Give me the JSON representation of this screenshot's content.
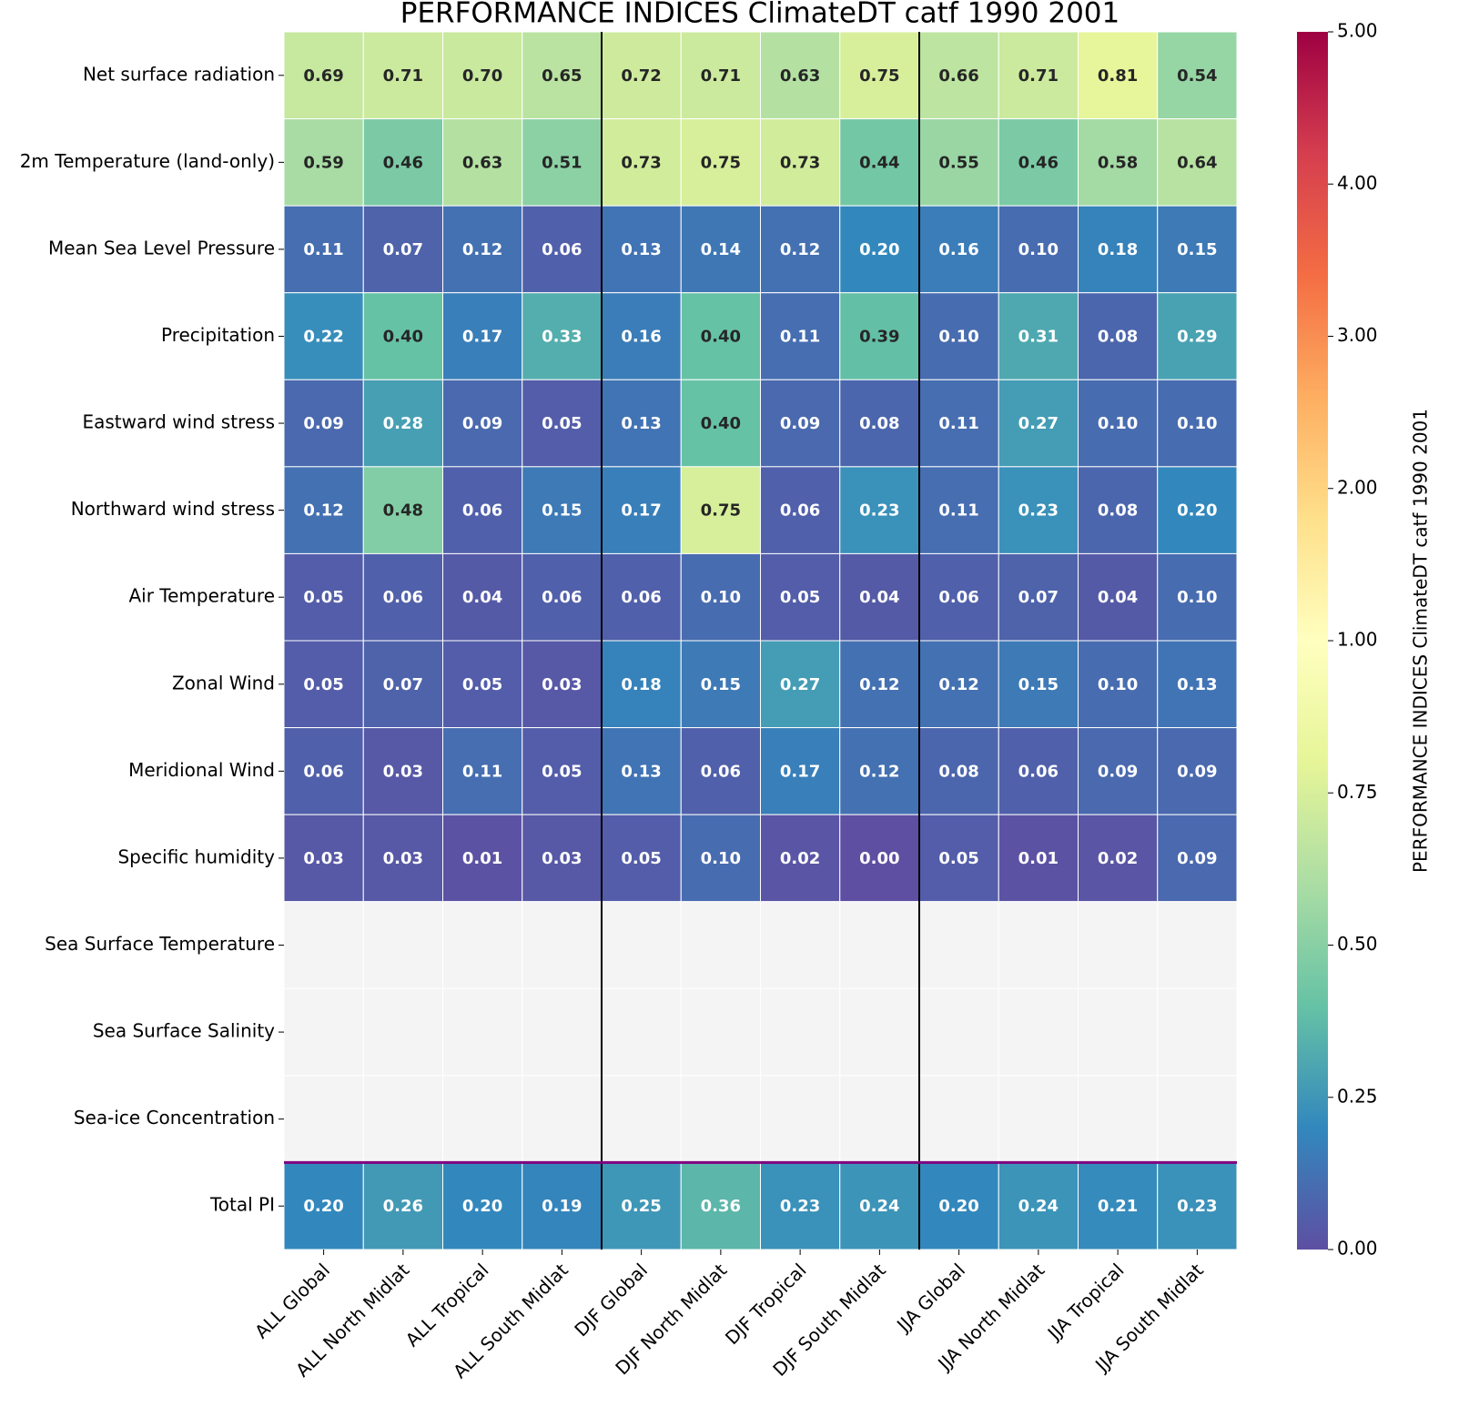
{
  "chart_data": {
    "type": "heatmap",
    "title": "PERFORMANCE INDICES ClimateDT catf 1990 2001",
    "rows": [
      "Net surface radiation",
      "2m Temperature (land-only)",
      "Mean Sea Level Pressure",
      "Precipitation",
      "Eastward wind stress",
      "Northward wind stress",
      "Air Temperature",
      "Zonal Wind",
      "Meridional Wind",
      "Specific humidity",
      "Sea Surface Temperature",
      "Sea Surface Salinity",
      "Sea-ice Concentration",
      "Total PI"
    ],
    "columns": [
      "ALL Global",
      "ALL North Midlat",
      "ALL Tropical",
      "ALL South Midlat",
      "DJF Global",
      "DJF North Midlat",
      "DJF Tropical",
      "DJF South Midlat",
      "JJA Global",
      "JJA North Midlat",
      "JJA Tropical",
      "JJA South Midlat"
    ],
    "values": [
      [
        0.69,
        0.71,
        0.7,
        0.65,
        0.72,
        0.71,
        0.63,
        0.75,
        0.66,
        0.71,
        0.81,
        0.54
      ],
      [
        0.59,
        0.46,
        0.63,
        0.51,
        0.73,
        0.75,
        0.73,
        0.44,
        0.55,
        0.46,
        0.58,
        0.64
      ],
      [
        0.11,
        0.07,
        0.12,
        0.06,
        0.13,
        0.14,
        0.12,
        0.2,
        0.16,
        0.1,
        0.18,
        0.15
      ],
      [
        0.22,
        0.4,
        0.17,
        0.33,
        0.16,
        0.4,
        0.11,
        0.39,
        0.1,
        0.31,
        0.08,
        0.29
      ],
      [
        0.09,
        0.28,
        0.09,
        0.05,
        0.13,
        0.4,
        0.09,
        0.08,
        0.11,
        0.27,
        0.1,
        0.1
      ],
      [
        0.12,
        0.48,
        0.06,
        0.15,
        0.17,
        0.75,
        0.06,
        0.23,
        0.11,
        0.23,
        0.08,
        0.2
      ],
      [
        0.05,
        0.06,
        0.04,
        0.06,
        0.06,
        0.1,
        0.05,
        0.04,
        0.06,
        0.07,
        0.04,
        0.1
      ],
      [
        0.05,
        0.07,
        0.05,
        0.03,
        0.18,
        0.15,
        0.27,
        0.12,
        0.12,
        0.15,
        0.1,
        0.13
      ],
      [
        0.06,
        0.03,
        0.11,
        0.05,
        0.13,
        0.06,
        0.17,
        0.12,
        0.08,
        0.06,
        0.09,
        0.09
      ],
      [
        0.03,
        0.03,
        0.01,
        0.03,
        0.05,
        0.1,
        0.02,
        0.0,
        0.05,
        0.01,
        0.02,
        0.09
      ],
      [
        null,
        null,
        null,
        null,
        null,
        null,
        null,
        null,
        null,
        null,
        null,
        null
      ],
      [
        null,
        null,
        null,
        null,
        null,
        null,
        null,
        null,
        null,
        null,
        null,
        null
      ],
      [
        null,
        null,
        null,
        null,
        null,
        null,
        null,
        null,
        null,
        null,
        null,
        null
      ],
      [
        0.2,
        0.26,
        0.2,
        0.19,
        0.25,
        0.36,
        0.23,
        0.24,
        0.2,
        0.24,
        0.21,
        0.23
      ]
    ],
    "value_labels": [
      [
        "0.69",
        "0.71",
        "0.70",
        "0.65",
        "0.72",
        "0.71",
        "0.63",
        "0.75",
        "0.66",
        "0.71",
        "0.81",
        "0.54"
      ],
      [
        "0.59",
        "0.46",
        "0.63",
        "0.51",
        "0.73",
        "0.75",
        "0.73",
        "0.44",
        "0.55",
        "0.46",
        "0.58",
        "0.64"
      ],
      [
        "0.11",
        "0.07",
        "0.12",
        "0.06",
        "0.13",
        "0.14",
        "0.12",
        "0.20",
        "0.16",
        "0.10",
        "0.18",
        "0.15"
      ],
      [
        "0.22",
        "0.40",
        "0.17",
        "0.33",
        "0.16",
        "0.40",
        "0.11",
        "0.39",
        "0.10",
        "0.31",
        "0.08",
        "0.29"
      ],
      [
        "0.09",
        "0.28",
        "0.09",
        "0.05",
        "0.13",
        "0.40",
        "0.09",
        "0.08",
        "0.11",
        "0.27",
        "0.10",
        "0.10"
      ],
      [
        "0.12",
        "0.48",
        "0.06",
        "0.15",
        "0.17",
        "0.75",
        "0.06",
        "0.23",
        "0.11",
        "0.23",
        "0.08",
        "0.20"
      ],
      [
        "0.05",
        "0.06",
        "0.04",
        "0.06",
        "0.06",
        "0.10",
        "0.05",
        "0.04",
        "0.06",
        "0.07",
        "0.04",
        "0.10"
      ],
      [
        "0.05",
        "0.07",
        "0.05",
        "0.03",
        "0.18",
        "0.15",
        "0.27",
        "0.12",
        "0.12",
        "0.15",
        "0.10",
        "0.13"
      ],
      [
        "0.06",
        "0.03",
        "0.11",
        "0.05",
        "0.13",
        "0.06",
        "0.17",
        "0.12",
        "0.08",
        "0.06",
        "0.09",
        "0.09"
      ],
      [
        "0.03",
        "0.03",
        "0.01",
        "0.03",
        "0.05",
        "0.10",
        "0.02",
        "0.00",
        "0.05",
        "0.01",
        "0.02",
        "0.09"
      ],
      [
        null,
        null,
        null,
        null,
        null,
        null,
        null,
        null,
        null,
        null,
        null,
        null
      ],
      [
        null,
        null,
        null,
        null,
        null,
        null,
        null,
        null,
        null,
        null,
        null,
        null
      ],
      [
        null,
        null,
        null,
        null,
        null,
        null,
        null,
        null,
        null,
        null,
        null,
        null
      ],
      [
        "0.20",
        "0.26",
        "0.20",
        "0.19",
        "0.25",
        "0.36",
        "0.23",
        "0.24",
        "0.20",
        "0.24",
        "0.21",
        "0.23"
      ]
    ],
    "colorbar": {
      "label": "PERFORMANCE INDICES ClimateDT catf 1990 2001",
      "lim": [
        0,
        5
      ],
      "ticks": [
        {
          "value": 0,
          "label": "0.00"
        },
        0.25,
        {
          "value": 0.5,
          "label": "0.50"
        },
        0.75,
        {
          "value": 1,
          "label": "1.00"
        },
        {
          "value": 2,
          "label": "2.00"
        },
        {
          "value": 3,
          "label": "3.00"
        },
        {
          "value": 4,
          "label": "4.00"
        },
        {
          "value": 5,
          "label": "5.00"
        }
      ]
    },
    "colormap": [
      "#5e4fa2",
      "#3288bd",
      "#66c2a5",
      "#abdda4",
      "#e6f598",
      "#ffffbf",
      "#fee08b",
      "#fdae61",
      "#f46d43",
      "#d53e4f",
      "#9e0142"
    ],
    "missing_color": "#f4f4f4"
  }
}
